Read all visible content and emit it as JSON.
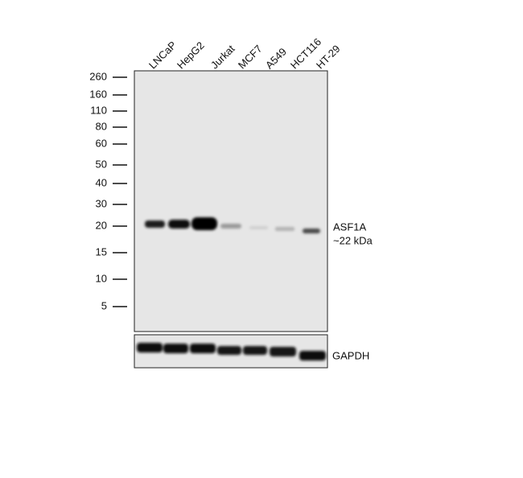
{
  "lanes": [
    "LNCaP",
    "HepG2",
    "Jurkat",
    "MCF7",
    "A549",
    "HCT116",
    "HT-29"
  ],
  "markers": [
    "260",
    "160",
    "110",
    "80",
    "60",
    "50",
    "40",
    "30",
    "20",
    "15",
    "10",
    "5"
  ],
  "target": {
    "name": "ASF1A",
    "size": "~22 kDa"
  },
  "loading_control": "GAPDH"
}
